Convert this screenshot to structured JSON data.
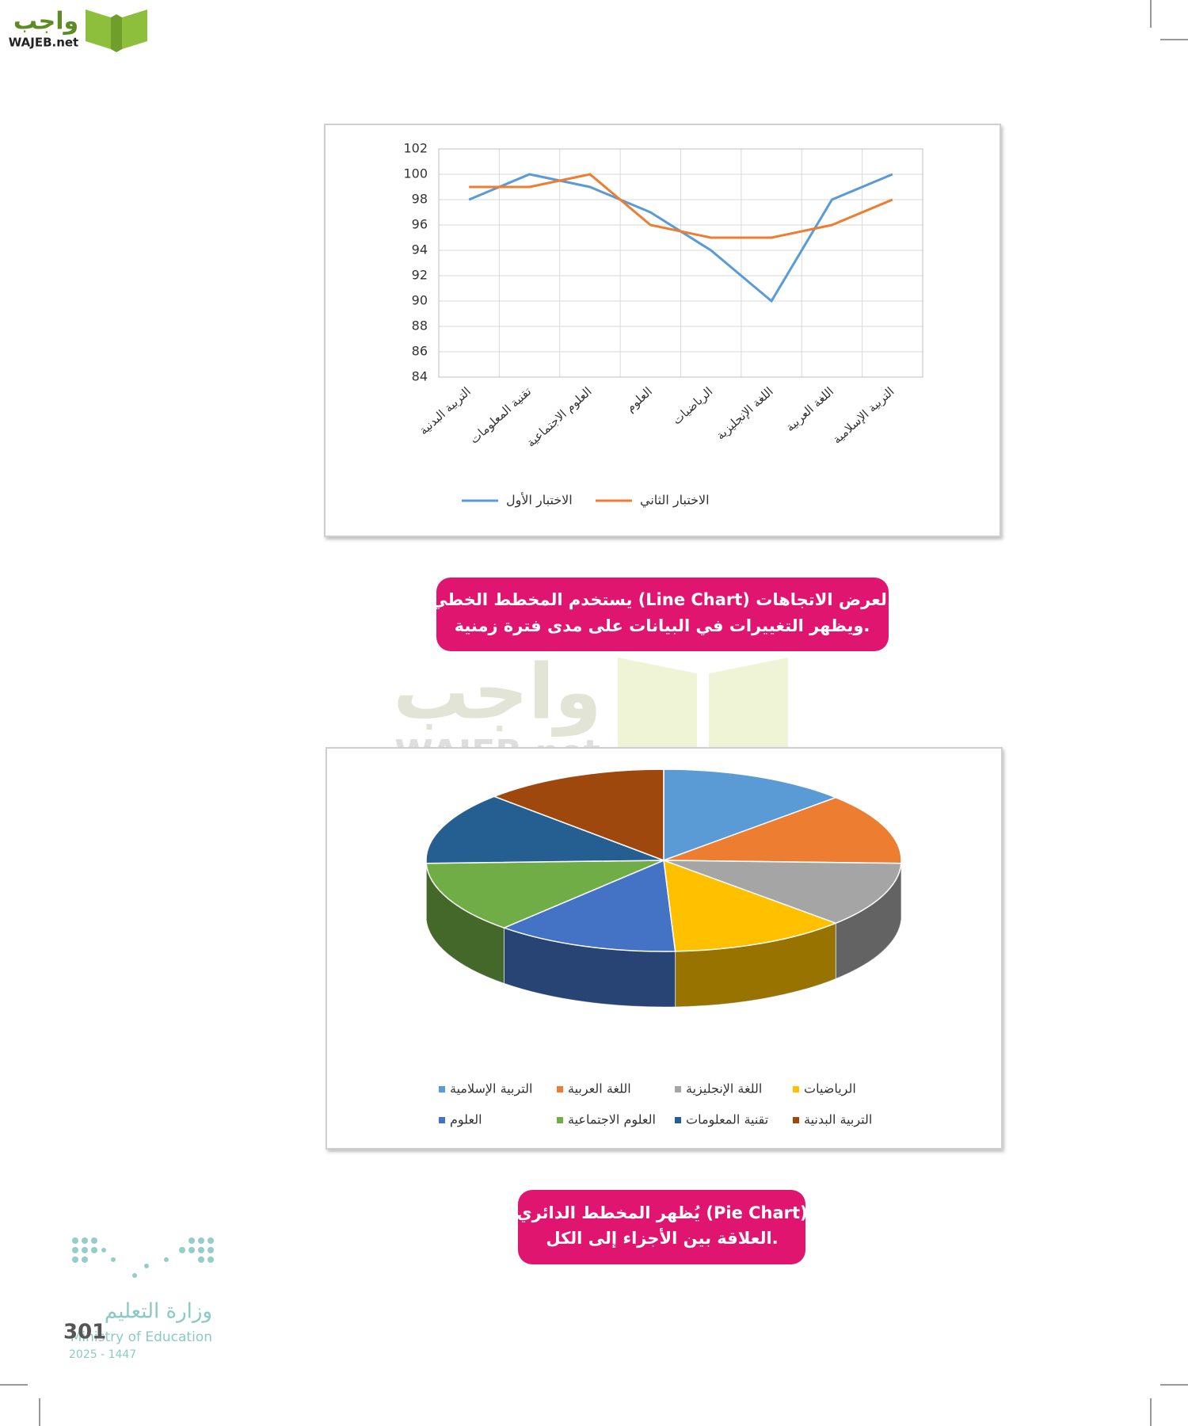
{
  "logo": {
    "arabic": "واجب",
    "latin": "WAJEB.net"
  },
  "watermark": {
    "arabic": "واجب",
    "latin": "WAJEB.net"
  },
  "chart_data": [
    {
      "type": "line",
      "categories": [
        "التربية البدنية",
        "تقنية المعلومات",
        "العلوم الاجتماعية",
        "العلوم",
        "الرياضيات",
        "اللغة الإنجليزية",
        "اللغة العربية",
        "التربية الإسلامية"
      ],
      "series": [
        {
          "name": "الاختبار الأول",
          "color": "#5b9bd5",
          "values": [
            98,
            100,
            99,
            97,
            94,
            90,
            98,
            100
          ]
        },
        {
          "name": "الاختبار الثاني",
          "color": "#ed7d31",
          "values": [
            99,
            99,
            100,
            96,
            95,
            95,
            96,
            98
          ]
        }
      ],
      "ylim": [
        84,
        102
      ],
      "yticks": [
        84,
        86,
        88,
        90,
        92,
        94,
        96,
        98,
        100,
        102
      ],
      "grid": true,
      "legend": "bottom"
    },
    {
      "type": "pie",
      "categories": [
        "التربية الإسلامية",
        "اللغة العربية",
        "اللغة الإنجليزية",
        "الرياضيات",
        "العلوم",
        "العلوم الاجتماعية",
        "تقنية المعلومات",
        "التربية البدنية"
      ],
      "values": [
        100,
        98,
        90,
        94,
        97,
        99,
        100,
        98
      ],
      "colors": [
        "#5b9bd5",
        "#ed7d31",
        "#a5a5a5",
        "#ffc000",
        "#4472c4",
        "#70ad47",
        "#255e91",
        "#9e480e"
      ],
      "legend": "bottom"
    }
  ],
  "captions": [
    {
      "lines": [
        "يستخدم المخطط الخطي (Line Chart) لعرض الاتجاهات،",
        "ويظهر التغييرات في البيانات على مدى فترة زمنية."
      ]
    },
    {
      "lines": [
        "يُظهر المخطط الدائري (Pie Chart)",
        "العلاقة بين الأجزاء إلى الكل."
      ]
    }
  ],
  "ministry": {
    "arabic": "وزارة التعليم",
    "english": "Ministry of Education",
    "years": "2025 - 1447"
  },
  "page_number": 301
}
